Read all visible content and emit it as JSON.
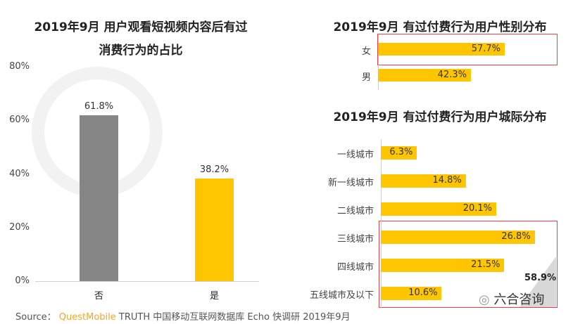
{
  "colors": {
    "yellow": "#FFC600",
    "gray": "#868686",
    "highlight_box": "#E0424E",
    "brand": "#F5A623"
  },
  "watermark": "QUEST MOBILE",
  "chart_data": [
    {
      "type": "bar",
      "title_line1": "2019年9月 用户观看短视频内容后有过",
      "title_line2": "消费行为的占比",
      "categories": [
        "否",
        "是"
      ],
      "values": [
        61.8,
        38.2
      ],
      "labels": [
        "61.8%",
        "38.2%"
      ],
      "bar_colors": [
        "#868686",
        "#FFC600"
      ],
      "yticks": [
        "0%",
        "20%",
        "40%",
        "60%",
        "80%"
      ],
      "ylim": [
        0,
        80
      ],
      "grid": false
    },
    {
      "type": "bar",
      "orientation": "horizontal",
      "title": "2019年9月 有过付费行为用户性别分布",
      "categories": [
        "女",
        "男"
      ],
      "values": [
        57.7,
        42.3
      ],
      "labels": [
        "57.7%",
        "42.3%"
      ],
      "highlighted": [
        "女"
      ]
    },
    {
      "type": "bar",
      "orientation": "horizontal",
      "title": "2019年9月 有过付费行为用户城际分布",
      "categories": [
        "一线城市",
        "新一线城市",
        "二线城市",
        "三线城市",
        "四线城市",
        "五线城市及以下"
      ],
      "values": [
        6.3,
        14.8,
        20.1,
        26.8,
        21.5,
        10.6
      ],
      "labels": [
        "6.3%",
        "14.8%",
        "20.1%",
        "26.8%",
        "21.5%",
        "10.6%"
      ],
      "highlighted": [
        "三线城市",
        "四线城市",
        "五线城市及以下"
      ],
      "highlight_total": "58.9%"
    }
  ],
  "source": {
    "prefix": "Source：",
    "brand": "QuestMobile",
    "rest": "TRUTH 中国移动互联网数据库 Echo 快调研 2019年9月"
  },
  "corner_logo": "六合咨询"
}
